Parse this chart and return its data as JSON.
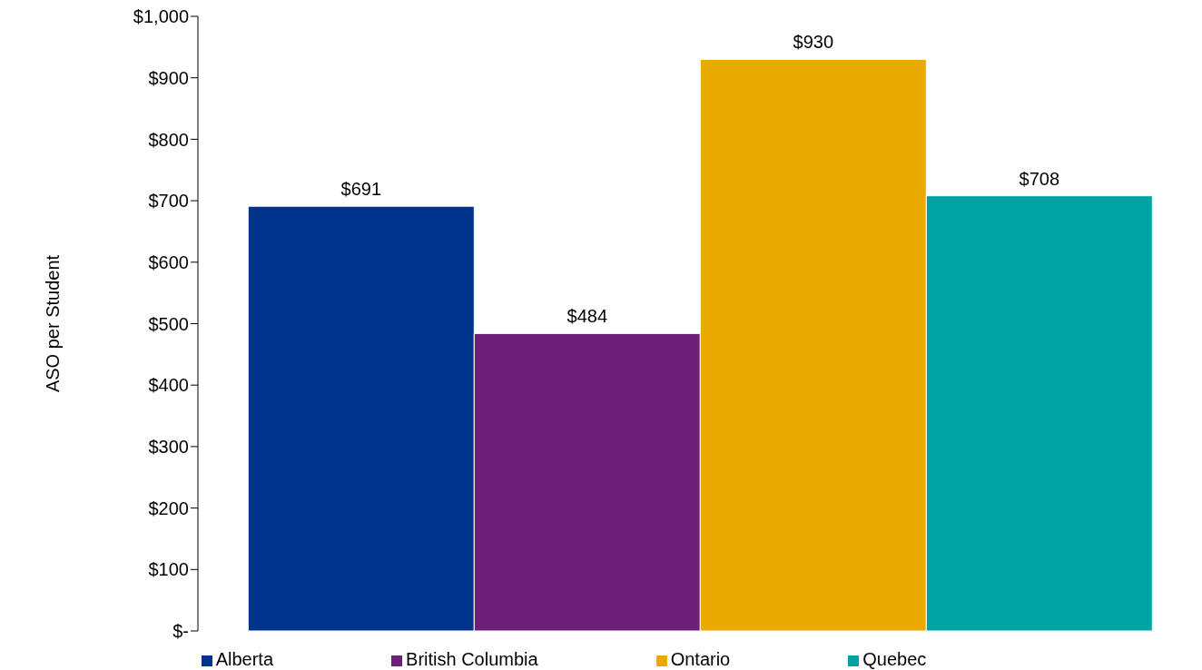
{
  "chart_data": {
    "type": "bar",
    "ylabel": "ASO per Student",
    "categories": [
      null
    ],
    "series": [
      {
        "name": "Alberta",
        "color": "#00338d",
        "values": [
          691
        ],
        "value_labels": [
          "$691"
        ]
      },
      {
        "name": "British Columbia",
        "color": "#6d2077",
        "values": [
          484
        ],
        "value_labels": [
          "$484"
        ]
      },
      {
        "name": "Ontario",
        "color": "#eaaa00",
        "values": [
          930
        ],
        "value_labels": [
          "$930"
        ]
      },
      {
        "name": "Quebec",
        "color": "#00a3a1",
        "values": [
          708
        ],
        "value_labels": [
          "$708"
        ]
      }
    ],
    "ylim": [
      0,
      1000
    ],
    "yticks": [
      {
        "value": 0,
        "label": "$-"
      },
      {
        "value": 100,
        "label": "$100"
      },
      {
        "value": 200,
        "label": "$200"
      },
      {
        "value": 300,
        "label": "$300"
      },
      {
        "value": 400,
        "label": "$400"
      },
      {
        "value": 500,
        "label": "$500"
      },
      {
        "value": 600,
        "label": "$600"
      },
      {
        "value": 700,
        "label": "$700"
      },
      {
        "value": 800,
        "label": "$800"
      },
      {
        "value": 900,
        "label": "$900"
      },
      {
        "value": 1000,
        "label": "$1,000"
      }
    ],
    "grid": false,
    "legend": "bottom"
  }
}
